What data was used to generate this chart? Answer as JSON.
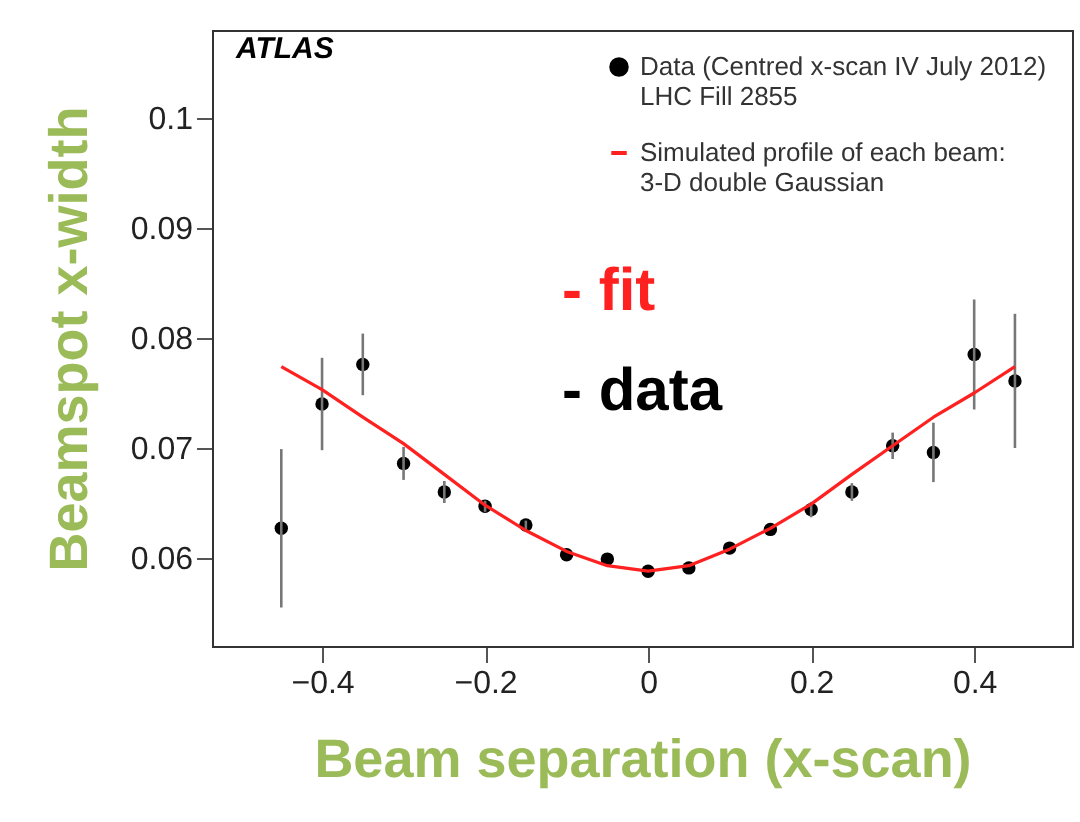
{
  "chart_data": {
    "type": "scatter",
    "xlabel": "Beam separation (x-scan)",
    "ylabel": "Beamspot x-width",
    "annotations": [
      "ATLAS",
      "- fit",
      "- data"
    ],
    "series": [
      {
        "name": "Data (Centred x-scan IV July 2012)\nLHC Fill 2855",
        "color": "#000000",
        "marker": "circle",
        "x": [
          -0.45,
          -0.4,
          -0.35,
          -0.3,
          -0.25,
          -0.2,
          -0.15,
          -0.1,
          -0.05,
          0,
          0.05,
          0.1,
          0.15,
          0.2,
          0.25,
          0.3,
          0.35,
          0.4,
          0.45
        ],
        "values": [
          0.0627,
          0.074,
          0.0776,
          0.0686,
          0.066,
          0.0647,
          0.063,
          0.0603,
          0.0599,
          0.0588,
          0.0591,
          0.0609,
          0.0626,
          0.0644,
          0.066,
          0.0702,
          0.0696,
          0.0785,
          0.0761
        ],
        "errors": [
          0.0072,
          0.0042,
          0.0028,
          0.0015,
          0.001,
          0.0005,
          0.0004,
          null,
          null,
          null,
          null,
          null,
          null,
          0.0007,
          0.0008,
          0.0012,
          0.0027,
          0.005,
          0.0061
        ]
      },
      {
        "name": "Simulated profile of each beam:\n3-D double Gaussian",
        "type": "line",
        "color": "#ff2020",
        "x": [
          -0.45,
          -0.4,
          -0.35,
          -0.3,
          -0.25,
          -0.2,
          -0.15,
          -0.1,
          -0.05,
          0,
          0.05,
          0.1,
          0.15,
          0.2,
          0.25,
          0.3,
          0.35,
          0.4,
          0.45
        ],
        "values": [
          0.0774,
          0.0753,
          0.0728,
          0.0704,
          0.0676,
          0.0648,
          0.0625,
          0.0606,
          0.0593,
          0.0588,
          0.0593,
          0.0608,
          0.0627,
          0.0649,
          0.0676,
          0.0702,
          0.0728,
          0.075,
          0.0774
        ]
      }
    ],
    "xlim": [
      -0.535,
      0.52
    ],
    "xticks": [
      -0.4,
      -0.2,
      0,
      0.2,
      0.4
    ],
    "ylim": [
      0.052,
      0.108
    ],
    "yticks": [
      0.06,
      0.07,
      0.08,
      0.09,
      0.1
    ],
    "legend": "top right",
    "grid": false
  }
}
